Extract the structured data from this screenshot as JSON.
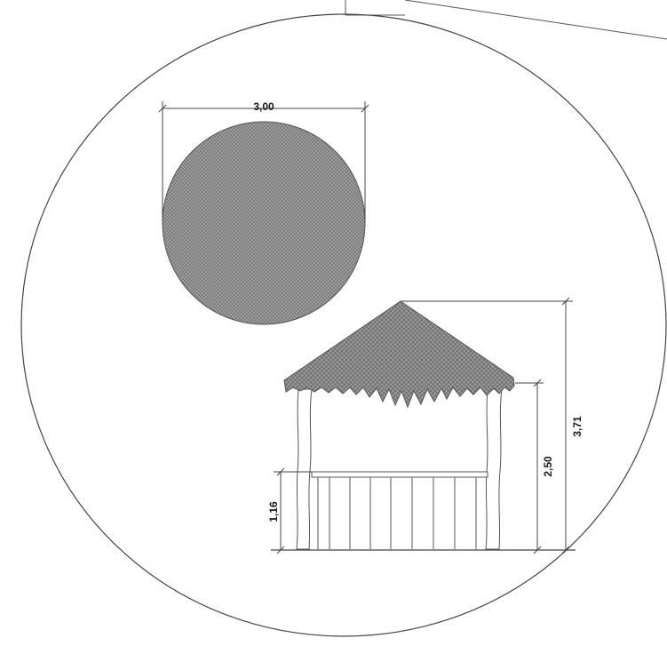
{
  "drawing": {
    "plan_view": {
      "width_dimension": "3,00"
    },
    "elevation_view": {
      "total_height_dimension": "3,71",
      "eave_height_dimension": "2,50",
      "railing_height_dimension": "1,16"
    }
  },
  "colors": {
    "line": "#3a3a3a",
    "hatch_fill": "#9a9a9a",
    "thatch_fill": "#8f8f8f",
    "background": "#ffffff"
  }
}
